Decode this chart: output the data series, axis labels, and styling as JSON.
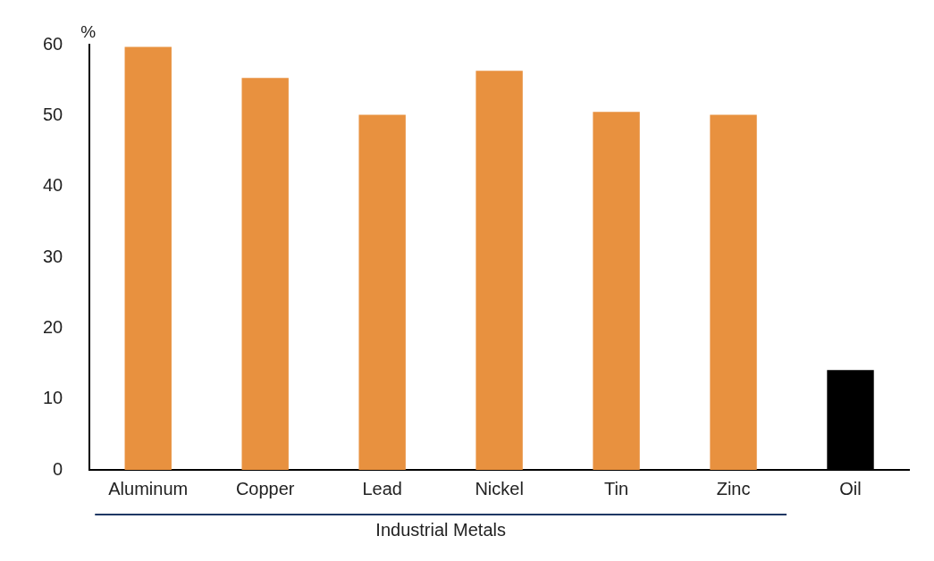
{
  "chart_data": {
    "type": "bar",
    "ylabel": "%",
    "xlabel": "Industrial Metals",
    "categories": [
      "Aluminum",
      "Copper",
      "Lead",
      "Nickel",
      "Tin",
      "Zinc",
      "Oil"
    ],
    "values": [
      59.7,
      55.3,
      50.1,
      56.3,
      50.5,
      50.1,
      14.1
    ],
    "colors": [
      "#e8913f",
      "#e8913f",
      "#e8913f",
      "#e8913f",
      "#e8913f",
      "#e8913f",
      "#000000"
    ],
    "ylim": [
      0,
      60
    ],
    "yticks": [
      0,
      10,
      20,
      30,
      40,
      50,
      60
    ],
    "grid": false,
    "legend": false
  }
}
